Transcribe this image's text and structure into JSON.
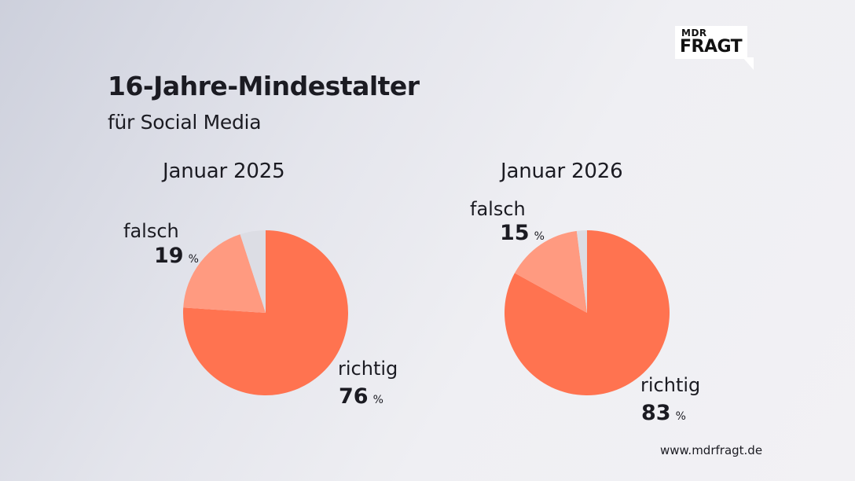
{
  "logo": {
    "line1": "MDR",
    "line2": "FRAGT"
  },
  "header": {
    "title": "16-Jahre-Mindestalter",
    "subtitle": "für Social Media"
  },
  "footer": {
    "url": "www.mdrfragt.de"
  },
  "colors": {
    "richtig": "#ff7350",
    "falsch": "#ff9a80",
    "other": "#dcdde4"
  },
  "chart_data": [
    {
      "type": "pie",
      "title": "Januar 2025",
      "slices": [
        {
          "label": "richtig",
          "value": 76,
          "display": "76",
          "unit": "%"
        },
        {
          "label": "falsch",
          "value": 19,
          "display": "19",
          "unit": "%"
        },
        {
          "label": "",
          "value": 5
        }
      ],
      "start_angle": "12 o'clock",
      "direction": "clockwise"
    },
    {
      "type": "pie",
      "title": "Januar 2026",
      "slices": [
        {
          "label": "richtig",
          "value": 83,
          "display": "83",
          "unit": "%"
        },
        {
          "label": "falsch",
          "value": 15,
          "display": "15",
          "unit": "%"
        },
        {
          "label": "",
          "value": 2
        }
      ],
      "start_angle": "12 o'clock",
      "direction": "clockwise"
    }
  ]
}
